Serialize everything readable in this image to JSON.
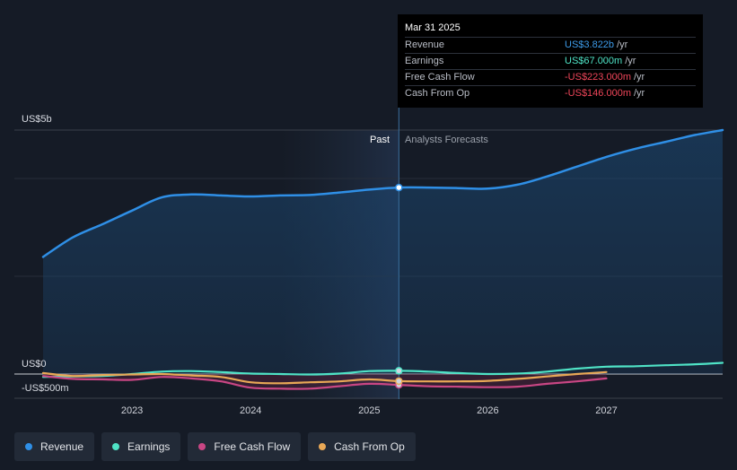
{
  "tooltip": {
    "date": "Mar 31 2025",
    "rows": [
      {
        "label": "Revenue",
        "value": "US$3.822b",
        "unit": "/yr",
        "color": "#3d9be9"
      },
      {
        "label": "Earnings",
        "value": "US$67.000m",
        "unit": "/yr",
        "color": "#4fe3c6"
      },
      {
        "label": "Free Cash Flow",
        "value": "-US$223.000m",
        "unit": "/yr",
        "color": "#f0465a"
      },
      {
        "label": "Cash From Op",
        "value": "-US$146.000m",
        "unit": "/yr",
        "color": "#f0465a"
      }
    ]
  },
  "past_label": "Past",
  "forecast_label": "Analysts Forecasts",
  "legend": [
    {
      "label": "Revenue",
      "color": "#2f8fe6"
    },
    {
      "label": "Earnings",
      "color": "#4fe3c6"
    },
    {
      "label": "Free Cash Flow",
      "color": "#c94684"
    },
    {
      "label": "Cash From Op",
      "color": "#e9a856"
    }
  ],
  "chart_data": {
    "type": "line",
    "y_labels": [
      "US$5b",
      "US$0",
      "-US$500m"
    ],
    "x_ticks": [
      "2023",
      "2024",
      "2025",
      "2026",
      "2027"
    ],
    "ylim": [
      -500,
      5000
    ],
    "xlim": [
      2022.25,
      2027.98
    ],
    "past_end_x": 2025.25,
    "shaded_region_start_x": 2024.25,
    "series": [
      {
        "name": "Revenue",
        "color": "#2f8fe6",
        "x": [
          2022.25,
          2022.5,
          2022.75,
          2023.0,
          2023.25,
          2023.5,
          2023.75,
          2024.0,
          2024.25,
          2024.5,
          2024.75,
          2025.0,
          2025.25,
          2025.5,
          2025.75,
          2026.0,
          2026.25,
          2026.5,
          2026.75,
          2027.0,
          2027.25,
          2027.5,
          2027.75,
          2027.98
        ],
        "y": [
          2400,
          2800,
          3070,
          3350,
          3620,
          3680,
          3660,
          3640,
          3660,
          3670,
          3720,
          3780,
          3822,
          3822,
          3810,
          3800,
          3880,
          4050,
          4250,
          4450,
          4620,
          4760,
          4900,
          5000
        ]
      },
      {
        "name": "Earnings",
        "color": "#4fe3c6",
        "x": [
          2022.25,
          2022.5,
          2022.75,
          2023.0,
          2023.25,
          2023.5,
          2023.75,
          2024.0,
          2024.25,
          2024.5,
          2024.75,
          2025.0,
          2025.25,
          2025.5,
          2025.75,
          2026.0,
          2026.25,
          2026.5,
          2026.75,
          2027.0,
          2027.25,
          2027.5,
          2027.75,
          2027.98
        ],
        "y": [
          -60,
          -50,
          -40,
          0,
          50,
          60,
          40,
          10,
          0,
          -10,
          10,
          60,
          67,
          50,
          20,
          0,
          10,
          50,
          110,
          150,
          160,
          180,
          200,
          230
        ]
      },
      {
        "name": "Free Cash Flow",
        "color": "#c94684",
        "x": [
          2022.25,
          2022.5,
          2022.75,
          2023.0,
          2023.25,
          2023.5,
          2023.75,
          2024.0,
          2024.25,
          2024.5,
          2024.75,
          2025.0,
          2025.25,
          2025.5,
          2025.75,
          2026.0,
          2026.25,
          2026.5,
          2026.75,
          2027.0
        ],
        "y": [
          -40,
          -100,
          -110,
          -120,
          -60,
          -90,
          -150,
          -280,
          -300,
          -300,
          -250,
          -200,
          -223,
          -250,
          -260,
          -270,
          -260,
          -200,
          -150,
          -90
        ]
      },
      {
        "name": "Cash From Op",
        "color": "#e9a856",
        "x": [
          2022.25,
          2022.5,
          2022.75,
          2023.0,
          2023.25,
          2023.5,
          2023.75,
          2024.0,
          2024.25,
          2024.5,
          2024.75,
          2025.0,
          2025.25,
          2025.5,
          2025.75,
          2026.0,
          2026.25,
          2026.5,
          2026.75,
          2027.0
        ],
        "y": [
          20,
          -40,
          -20,
          -10,
          0,
          -30,
          -60,
          -170,
          -190,
          -170,
          -150,
          -110,
          -146,
          -150,
          -150,
          -140,
          -100,
          -50,
          0,
          40
        ]
      }
    ]
  }
}
